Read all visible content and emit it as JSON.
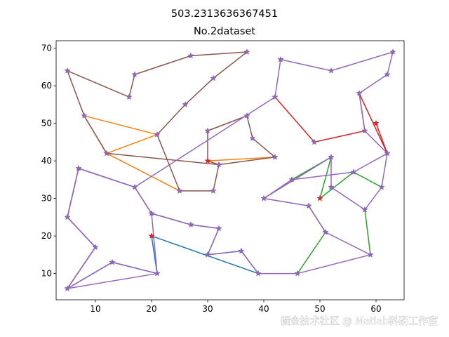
{
  "chart_data": {
    "type": "line",
    "title": "503.2313636367451",
    "subtitle": "No.2dataset",
    "xlabel": "",
    "ylabel": "",
    "xlim": [
      3,
      65
    ],
    "ylim": [
      3,
      72
    ],
    "xticks": [
      10,
      20,
      30,
      40,
      50,
      60
    ],
    "yticks": [
      10,
      20,
      30,
      40,
      50,
      60,
      70
    ],
    "grid": false,
    "depots": [
      {
        "x": 30,
        "y": 40,
        "color": "#d62728"
      },
      {
        "x": 20,
        "y": 20,
        "color": "#d62728"
      },
      {
        "x": 60,
        "y": 50,
        "color": "#d62728"
      },
      {
        "x": 50,
        "y": 30,
        "color": "#d62728"
      }
    ],
    "series": [
      {
        "color": "#ff7f0e",
        "points": [
          [
            30,
            40
          ],
          [
            42,
            41
          ]
        ]
      },
      {
        "color": "#ff7f0e",
        "points": [
          [
            25,
            32
          ],
          [
            12,
            42
          ],
          [
            8,
            52
          ],
          [
            21,
            47
          ],
          [
            12,
            42
          ]
        ]
      },
      {
        "color": "#8c564b",
        "points": [
          [
            12,
            42
          ],
          [
            32,
            39
          ],
          [
            42,
            41
          ],
          [
            38,
            46
          ],
          [
            37,
            52
          ],
          [
            30,
            48
          ],
          [
            30,
            40
          ],
          [
            32,
            39
          ],
          [
            31,
            32
          ],
          [
            25,
            32
          ],
          [
            21,
            47
          ],
          [
            26,
            55
          ],
          [
            31,
            62
          ],
          [
            37,
            69
          ],
          [
            27,
            68
          ],
          [
            17,
            63
          ],
          [
            16,
            57
          ],
          [
            5,
            64
          ],
          [
            8,
            52
          ],
          [
            12,
            42
          ]
        ]
      },
      {
        "color": "#8c564b",
        "points": [
          [
            30,
            48
          ],
          [
            37,
            52
          ]
        ]
      },
      {
        "color": "#1f77b4",
        "points": [
          [
            20,
            20
          ],
          [
            39,
            10
          ],
          [
            36,
            16
          ],
          [
            30,
            15
          ],
          [
            32,
            22
          ],
          [
            27,
            23
          ],
          [
            20,
            26
          ],
          [
            17,
            33
          ],
          [
            7,
            38
          ],
          [
            5,
            25
          ],
          [
            10,
            17
          ],
          [
            5,
            6
          ],
          [
            13,
            13
          ],
          [
            21,
            10
          ],
          [
            20,
            20
          ]
        ]
      },
      {
        "color": "#2ca02c",
        "points": [
          [
            50,
            30
          ],
          [
            52,
            41
          ],
          [
            45,
            35
          ]
        ]
      },
      {
        "color": "#2ca02c",
        "points": [
          [
            50,
            30
          ],
          [
            56,
            37
          ],
          [
            61,
            33
          ]
        ]
      },
      {
        "color": "#2ca02c",
        "points": [
          [
            46,
            10
          ],
          [
            51,
            21
          ],
          [
            48,
            28
          ]
        ]
      },
      {
        "color": "#2ca02c",
        "points": [
          [
            58,
            27
          ],
          [
            59,
            15
          ]
        ]
      },
      {
        "color": "#d62728",
        "points": [
          [
            42,
            57
          ],
          [
            49,
            45
          ],
          [
            58,
            48
          ],
          [
            57,
            58
          ]
        ]
      },
      {
        "color": "#d62728",
        "points": [
          [
            60,
            50
          ],
          [
            62,
            42
          ],
          [
            57,
            58
          ]
        ]
      },
      {
        "color": "#9467bd",
        "points": [
          [
            5,
            6
          ],
          [
            21,
            10
          ],
          [
            20,
            26
          ],
          [
            17,
            33
          ],
          [
            7,
            38
          ],
          [
            5,
            25
          ],
          [
            10,
            17
          ],
          [
            5,
            6
          ],
          [
            13,
            13
          ],
          [
            21,
            10
          ]
        ]
      },
      {
        "color": "#9467bd",
        "points": [
          [
            17,
            33
          ],
          [
            7,
            38
          ],
          [
            5,
            25
          ],
          [
            10,
            17
          ],
          [
            5,
            6
          ]
        ]
      },
      {
        "color": "#9467bd",
        "points": [
          [
            20,
            26
          ],
          [
            27,
            23
          ],
          [
            32,
            22
          ],
          [
            30,
            15
          ],
          [
            36,
            16
          ],
          [
            39,
            10
          ],
          [
            46,
            10
          ],
          [
            59,
            15
          ],
          [
            51,
            21
          ],
          [
            48,
            28
          ],
          [
            40,
            30
          ],
          [
            45,
            35
          ],
          [
            56,
            37
          ],
          [
            62,
            42
          ],
          [
            61,
            33
          ],
          [
            58,
            27
          ],
          [
            52,
            33
          ],
          [
            52,
            41
          ],
          [
            40,
            30
          ],
          [
            48,
            28
          ]
        ]
      },
      {
        "color": "#9467bd",
        "points": [
          [
            17,
            33
          ],
          [
            42,
            57
          ],
          [
            43,
            67
          ],
          [
            52,
            64
          ],
          [
            63,
            69
          ],
          [
            62,
            63
          ],
          [
            57,
            58
          ],
          [
            58,
            48
          ],
          [
            62,
            42
          ]
        ]
      }
    ],
    "stops": [
      [
        5,
        6
      ],
      [
        21,
        10
      ],
      [
        13,
        13
      ],
      [
        10,
        17
      ],
      [
        5,
        25
      ],
      [
        7,
        38
      ],
      [
        17,
        33
      ],
      [
        20,
        26
      ],
      [
        27,
        23
      ],
      [
        32,
        22
      ],
      [
        30,
        15
      ],
      [
        36,
        16
      ],
      [
        39,
        10
      ],
      [
        46,
        10
      ],
      [
        59,
        15
      ],
      [
        51,
        21
      ],
      [
        48,
        28
      ],
      [
        40,
        30
      ],
      [
        45,
        35
      ],
      [
        56,
        37
      ],
      [
        61,
        33
      ],
      [
        58,
        27
      ],
      [
        52,
        33
      ],
      [
        52,
        41
      ],
      [
        62,
        42
      ],
      [
        58,
        48
      ],
      [
        49,
        45
      ],
      [
        57,
        58
      ],
      [
        62,
        63
      ],
      [
        63,
        69
      ],
      [
        52,
        64
      ],
      [
        43,
        67
      ],
      [
        42,
        57
      ],
      [
        37,
        52
      ],
      [
        38,
        46
      ],
      [
        42,
        41
      ],
      [
        32,
        39
      ],
      [
        31,
        32
      ],
      [
        25,
        32
      ],
      [
        21,
        47
      ],
      [
        26,
        55
      ],
      [
        31,
        62
      ],
      [
        37,
        69
      ],
      [
        27,
        68
      ],
      [
        17,
        63
      ],
      [
        16,
        57
      ],
      [
        5,
        64
      ],
      [
        8,
        52
      ],
      [
        12,
        42
      ],
      [
        30,
        48
      ]
    ]
  },
  "watermark": "掘金技术社区 @ Matlab科研工作室"
}
